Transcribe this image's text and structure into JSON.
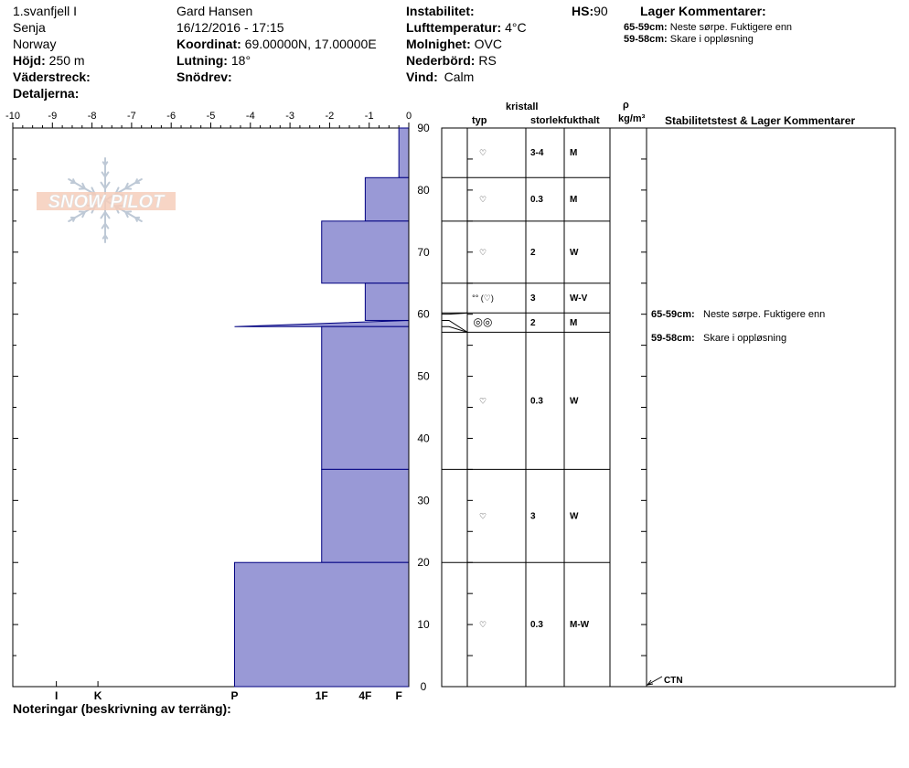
{
  "header": {
    "site": "1.svanfjell I",
    "region": "Senja",
    "country": "Norway",
    "elevation_label": "Höjd:",
    "elevation_value": "250 m",
    "aspect_label": "Väderstreck:",
    "details_label": "Detaljerna:",
    "observer": "Gard Hansen",
    "datetime": "16/12/2016 - 17:15",
    "coord_label": "Koordinat:",
    "coord_value": "69.00000N, 17.00000E",
    "slope_label": "Lutning:",
    "slope_value": "18°",
    "drift_label": "Snödrev:",
    "instability_label": "Instabilitet:",
    "airtemp_label": "Lufttemperatur:",
    "airtemp_value": "4°C",
    "sky_label": "Molnighet:",
    "sky_value": "OVC",
    "precip_label": "Nederbörd:",
    "precip_value": "RS",
    "wind_label": "Vind:",
    "wind_value": "Calm",
    "hs_label": "HS:",
    "hs_value": "90",
    "layer_comments_title": "Lager Kommentarer:",
    "layer_comments": [
      {
        "range": "65-59cm:",
        "text": "Neste sørpe. Fuktigere enn"
      },
      {
        "range": "59-58cm:",
        "text": "Skare i oppløsning"
      }
    ]
  },
  "logo_text": "SNOW PILOT",
  "columns": {
    "kristall": "kristall",
    "typ": "typ",
    "storlek": "storlek",
    "fukthalt": "fukthalt",
    "rho": "ρ",
    "density_unit": "kg/m³",
    "stability": "Stabilitetstest & Lager Kommentarer"
  },
  "stability_test": "CTN",
  "footer": {
    "notes_label": "Noteringar (beskrivning av terräng):"
  },
  "chart_data": {
    "type": "area",
    "x_ticks": [
      "-10",
      "-9",
      "-8",
      "-7",
      "-6",
      "-5",
      "-4",
      "-3",
      "-2",
      "-1",
      "0"
    ],
    "xlim": [
      -10,
      0
    ],
    "y_ticks": [
      "90",
      "80",
      "70",
      "60",
      "50",
      "40",
      "30",
      "20",
      "10",
      "0"
    ],
    "ylim": [
      0,
      90
    ],
    "ylabel": "",
    "hardness_scale": [
      "I",
      "K",
      "P",
      "1F",
      "4F",
      "F"
    ],
    "hardness_positions": [
      -8.9,
      -7.85,
      -4.4,
      -2.2,
      -1.1,
      -0.25
    ],
    "hardness_profile": [
      {
        "top": 90,
        "bottom": 82,
        "hardness": -0.25
      },
      {
        "top": 82,
        "bottom": 75,
        "hardness": -1.1
      },
      {
        "top": 75,
        "bottom": 65,
        "hardness": -2.2
      },
      {
        "top": 65,
        "bottom": 59,
        "hardness": -1.1
      },
      {
        "top": 59,
        "bottom": 58,
        "hardness": -4.4
      },
      {
        "top": 58,
        "bottom": 35,
        "hardness": -2.2
      },
      {
        "top": 35,
        "bottom": 20,
        "hardness": -2.2
      },
      {
        "top": 20,
        "bottom": 0,
        "hardness": -4.4
      }
    ],
    "layers": [
      {
        "top": 90,
        "bottom": 82,
        "grain": "rounding faceted",
        "size": "3-4",
        "wetness": "M"
      },
      {
        "top": 82,
        "bottom": 75,
        "grain": "melt-freeze",
        "size": "0.3",
        "wetness": "M"
      },
      {
        "top": 75,
        "bottom": 65,
        "grain": "rounding faceted",
        "size": "2",
        "wetness": "W"
      },
      {
        "top": 65,
        "bottom": 59,
        "grain": "rounded (faceted)",
        "size": "3",
        "wetness": "W-V"
      },
      {
        "top": 59,
        "bottom": 58,
        "grain": "ice crust",
        "size": "2",
        "wetness": "M"
      },
      {
        "top": 58,
        "bottom": 35,
        "grain": "melt-freeze",
        "size": "0.3",
        "wetness": "W"
      },
      {
        "top": 35,
        "bottom": 20,
        "grain": "rounding faceted",
        "size": "3",
        "wetness": "W"
      },
      {
        "top": 20,
        "bottom": 0,
        "grain": "melt-freeze",
        "size": "0.3",
        "wetness": "M-W"
      }
    ],
    "colors": {
      "fill": "#9999d6",
      "stroke": "#000080"
    }
  }
}
